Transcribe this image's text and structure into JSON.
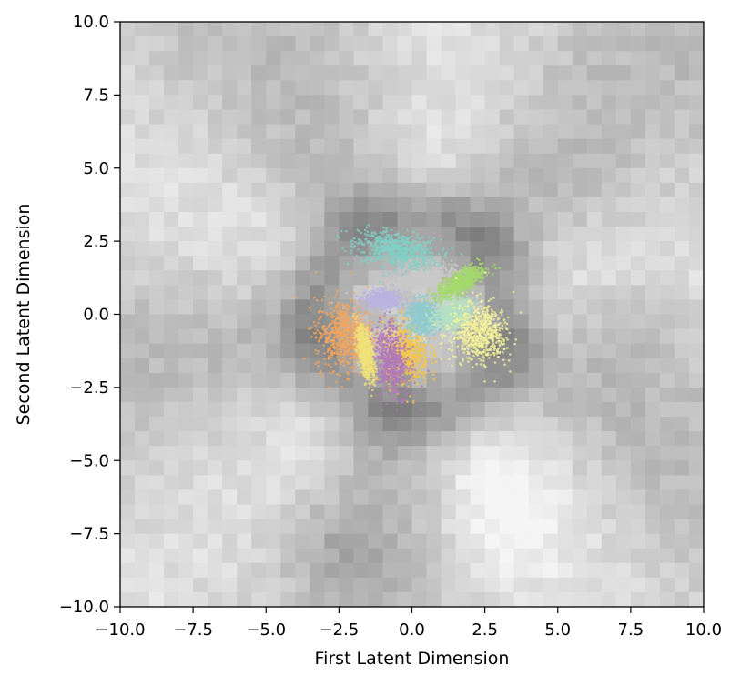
{
  "chart_data": {
    "type": "scatter",
    "title": "",
    "xlabel": "First Latent Dimension",
    "ylabel": "Second Latent Dimension",
    "xlim": [
      -10.0,
      10.0
    ],
    "ylim": [
      -10.0,
      10.0
    ],
    "x_ticks": [
      "−10.0",
      "−7.5",
      "−5.0",
      "−2.5",
      "0.0",
      "2.5",
      "5.0",
      "7.5",
      "10.0"
    ],
    "y_ticks": [
      "−10.0",
      "−7.5",
      "−5.0",
      "−2.5",
      "0.0",
      "2.5",
      "5.0",
      "7.5",
      "10.0"
    ],
    "grid": false,
    "legend": "none",
    "background": {
      "type": "grayscale-image",
      "description_free": true
    },
    "clusters": [
      {
        "color": "#7fd0c6",
        "center": [
          -0.5,
          2.2
        ],
        "spread": [
          1.4,
          0.6
        ],
        "rotation": -10
      },
      {
        "color": "#c8c8c8",
        "center": [
          0.0,
          1.1
        ],
        "spread": [
          1.5,
          0.35
        ],
        "rotation": 15
      },
      {
        "color": "#f5a65b",
        "center": [
          -2.3,
          -0.7
        ],
        "spread": [
          1.0,
          1.2
        ],
        "rotation": 0
      },
      {
        "color": "#f5c64a",
        "center": [
          -0.2,
          -1.3
        ],
        "spread": [
          0.8,
          1.1
        ],
        "rotation": 0
      },
      {
        "color": "#b07ab8",
        "center": [
          -0.7,
          -1.6
        ],
        "spread": [
          0.55,
          1.2
        ],
        "rotation": 10
      },
      {
        "color": "#f0e27a",
        "center": [
          -1.6,
          -1.3
        ],
        "spread": [
          0.25,
          0.9
        ],
        "rotation": 10
      },
      {
        "color": "#b9b3e0",
        "center": [
          -1.0,
          0.5
        ],
        "spread": [
          0.6,
          0.3
        ],
        "rotation": 0
      },
      {
        "color": "#8fc9cf",
        "center": [
          0.4,
          -0.1
        ],
        "spread": [
          0.6,
          0.6
        ],
        "rotation": 0
      },
      {
        "color": "#b3e0c2",
        "center": [
          1.4,
          0.0
        ],
        "spread": [
          0.7,
          0.5
        ],
        "rotation": 20
      },
      {
        "color": "#a4d96c",
        "center": [
          1.7,
          1.1
        ],
        "spread": [
          0.9,
          0.35
        ],
        "rotation": 30
      },
      {
        "color": "#f4f29b",
        "center": [
          2.3,
          -0.6
        ],
        "spread": [
          1.0,
          1.0
        ],
        "rotation": -35
      }
    ]
  }
}
